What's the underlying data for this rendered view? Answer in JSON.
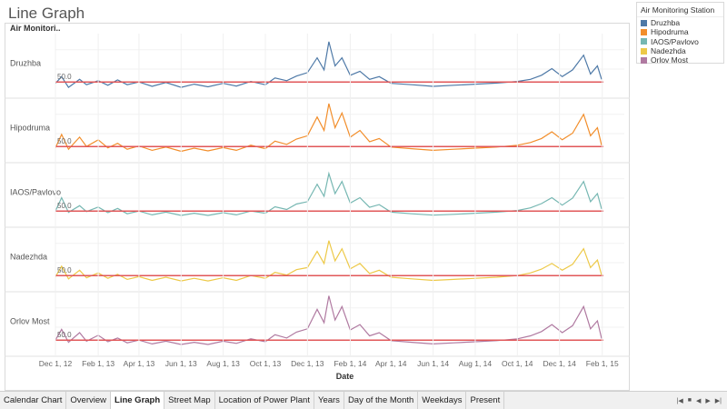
{
  "sheet": {
    "title": "Line Graph"
  },
  "legend": {
    "title": "Air Monitoring Station",
    "items": [
      {
        "label": "Druzhba",
        "color": "#4e79a7"
      },
      {
        "label": "Hipodruma",
        "color": "#f28e2b"
      },
      {
        "label": "IAOS/Pavlovo",
        "color": "#76b7b2"
      },
      {
        "label": "Nadezhda",
        "color": "#edc948"
      },
      {
        "label": "Orlov Most",
        "color": "#b07aa1"
      }
    ]
  },
  "tabs": [
    {
      "label": "Calendar Chart",
      "active": false
    },
    {
      "label": "Overview",
      "active": false
    },
    {
      "label": "Line Graph",
      "active": true
    },
    {
      "label": "Street Map",
      "active": false
    },
    {
      "label": "Location of Power Plant",
      "active": false
    },
    {
      "label": "Years",
      "active": false
    },
    {
      "label": "Day of the Month",
      "active": false
    },
    {
      "label": "Weekdays",
      "active": false
    },
    {
      "label": "Present",
      "active": false
    }
  ],
  "tab_controls": [
    "|◀",
    "■",
    "◀",
    "▶",
    "▶|"
  ],
  "chart_data": {
    "type": "line",
    "row_header": "Air Monitori..",
    "xlabel": "Date",
    "x_ticks": [
      "Dec 1, 12",
      "Feb 1, 13",
      "Apr 1, 13",
      "Jun 1, 13",
      "Aug 1, 13",
      "Oct 1, 13",
      "Dec 1, 13",
      "Feb 1, 14",
      "Apr 1, 14",
      "Jun 1, 14",
      "Aug 1, 14",
      "Oct 1, 14",
      "Dec 1, 14",
      "Feb 1, 15"
    ],
    "x_range": [
      "2012-12-01",
      "2015-01-31"
    ],
    "reference_line": {
      "value": 50,
      "label": "50.0",
      "color": "#e15759"
    },
    "grid": true,
    "series": [
      {
        "name": "Druzhba",
        "color": "#4e79a7",
        "points": [
          [
            "2012-12-01",
            45
          ],
          [
            "2012-12-10",
            70
          ],
          [
            "2012-12-20",
            30
          ],
          [
            "2013-01-05",
            60
          ],
          [
            "2013-01-15",
            40
          ],
          [
            "2013-02-01",
            55
          ],
          [
            "2013-02-15",
            38
          ],
          [
            "2013-03-01",
            58
          ],
          [
            "2013-03-15",
            40
          ],
          [
            "2013-04-01",
            50
          ],
          [
            "2013-04-20",
            34
          ],
          [
            "2013-05-10",
            48
          ],
          [
            "2013-06-01",
            30
          ],
          [
            "2013-06-20",
            42
          ],
          [
            "2013-07-10",
            32
          ],
          [
            "2013-08-01",
            45
          ],
          [
            "2013-08-20",
            35
          ],
          [
            "2013-09-10",
            52
          ],
          [
            "2013-10-01",
            40
          ],
          [
            "2013-10-15",
            65
          ],
          [
            "2013-11-01",
            55
          ],
          [
            "2013-11-15",
            72
          ],
          [
            "2013-12-01",
            85
          ],
          [
            "2013-12-15",
            140
          ],
          [
            "2013-12-25",
            95
          ],
          [
            "2014-01-01",
            200
          ],
          [
            "2014-01-10",
            110
          ],
          [
            "2014-01-20",
            140
          ],
          [
            "2014-02-01",
            75
          ],
          [
            "2014-02-15",
            90
          ],
          [
            "2014-03-01",
            60
          ],
          [
            "2014-03-15",
            70
          ],
          [
            "2014-04-01",
            45
          ],
          [
            "2014-05-01",
            40
          ],
          [
            "2014-06-01",
            34
          ],
          [
            "2014-07-01",
            38
          ],
          [
            "2014-08-01",
            42
          ],
          [
            "2014-09-01",
            46
          ],
          [
            "2014-10-01",
            52
          ],
          [
            "2014-10-20",
            60
          ],
          [
            "2014-11-05",
            75
          ],
          [
            "2014-11-20",
            100
          ],
          [
            "2014-12-05",
            70
          ],
          [
            "2014-12-20",
            95
          ],
          [
            "2015-01-05",
            150
          ],
          [
            "2015-01-15",
            80
          ],
          [
            "2015-01-25",
            110
          ],
          [
            "2015-01-31",
            60
          ]
        ]
      },
      {
        "name": "Hipodruma",
        "color": "#f28e2b",
        "points": [
          [
            "2012-12-01",
            45
          ],
          [
            "2012-12-10",
            95
          ],
          [
            "2012-12-20",
            40
          ],
          [
            "2013-01-05",
            85
          ],
          [
            "2013-01-15",
            50
          ],
          [
            "2013-02-01",
            75
          ],
          [
            "2013-02-15",
            45
          ],
          [
            "2013-03-01",
            62
          ],
          [
            "2013-03-15",
            40
          ],
          [
            "2013-04-01",
            52
          ],
          [
            "2013-04-20",
            36
          ],
          [
            "2013-05-10",
            48
          ],
          [
            "2013-06-01",
            32
          ],
          [
            "2013-06-20",
            44
          ],
          [
            "2013-07-10",
            34
          ],
          [
            "2013-08-01",
            46
          ],
          [
            "2013-08-20",
            36
          ],
          [
            "2013-09-10",
            55
          ],
          [
            "2013-10-01",
            42
          ],
          [
            "2013-10-15",
            70
          ],
          [
            "2013-11-01",
            58
          ],
          [
            "2013-11-15",
            78
          ],
          [
            "2013-12-01",
            90
          ],
          [
            "2013-12-15",
            160
          ],
          [
            "2013-12-25",
            110
          ],
          [
            "2014-01-01",
            210
          ],
          [
            "2014-01-10",
            120
          ],
          [
            "2014-01-20",
            175
          ],
          [
            "2014-02-01",
            85
          ],
          [
            "2014-02-15",
            110
          ],
          [
            "2014-03-01",
            68
          ],
          [
            "2014-03-15",
            80
          ],
          [
            "2014-04-01",
            48
          ],
          [
            "2014-05-01",
            42
          ],
          [
            "2014-06-01",
            36
          ],
          [
            "2014-07-01",
            40
          ],
          [
            "2014-08-01",
            44
          ],
          [
            "2014-09-01",
            48
          ],
          [
            "2014-10-01",
            55
          ],
          [
            "2014-10-20",
            65
          ],
          [
            "2014-11-05",
            80
          ],
          [
            "2014-11-20",
            105
          ],
          [
            "2014-12-05",
            75
          ],
          [
            "2014-12-20",
            100
          ],
          [
            "2015-01-05",
            170
          ],
          [
            "2015-01-15",
            90
          ],
          [
            "2015-01-25",
            120
          ],
          [
            "2015-01-31",
            55
          ]
        ]
      },
      {
        "name": "IAOS/Pavlovo",
        "color": "#76b7b2",
        "points": [
          [
            "2012-12-01",
            50
          ],
          [
            "2012-12-10",
            100
          ],
          [
            "2012-12-20",
            45
          ],
          [
            "2013-01-05",
            70
          ],
          [
            "2013-01-15",
            48
          ],
          [
            "2013-02-01",
            65
          ],
          [
            "2013-02-15",
            44
          ],
          [
            "2013-03-01",
            60
          ],
          [
            "2013-03-15",
            40
          ],
          [
            "2013-04-01",
            50
          ],
          [
            "2013-04-20",
            36
          ],
          [
            "2013-05-10",
            46
          ],
          [
            "2013-06-01",
            34
          ],
          [
            "2013-06-20",
            42
          ],
          [
            "2013-07-10",
            34
          ],
          [
            "2013-08-01",
            44
          ],
          [
            "2013-08-20",
            36
          ],
          [
            "2013-09-10",
            50
          ],
          [
            "2013-10-01",
            42
          ],
          [
            "2013-10-15",
            66
          ],
          [
            "2013-11-01",
            56
          ],
          [
            "2013-11-15",
            76
          ],
          [
            "2013-12-01",
            85
          ],
          [
            "2013-12-15",
            150
          ],
          [
            "2013-12-25",
            105
          ],
          [
            "2014-01-01",
            190
          ],
          [
            "2014-01-10",
            115
          ],
          [
            "2014-01-20",
            160
          ],
          [
            "2014-02-01",
            80
          ],
          [
            "2014-02-15",
            100
          ],
          [
            "2014-03-01",
            64
          ],
          [
            "2014-03-15",
            74
          ],
          [
            "2014-04-01",
            46
          ],
          [
            "2014-05-01",
            40
          ],
          [
            "2014-06-01",
            35
          ],
          [
            "2014-07-01",
            38
          ],
          [
            "2014-08-01",
            42
          ],
          [
            "2014-09-01",
            46
          ],
          [
            "2014-10-01",
            52
          ],
          [
            "2014-10-20",
            62
          ],
          [
            "2014-11-05",
            78
          ],
          [
            "2014-11-20",
            100
          ],
          [
            "2014-12-05",
            72
          ],
          [
            "2014-12-20",
            98
          ],
          [
            "2015-01-05",
            160
          ],
          [
            "2015-01-15",
            85
          ],
          [
            "2015-01-25",
            115
          ],
          [
            "2015-01-31",
            58
          ]
        ]
      },
      {
        "name": "Nadezhda",
        "color": "#edc948",
        "points": [
          [
            "2012-12-01",
            45
          ],
          [
            "2012-12-10",
            85
          ],
          [
            "2012-12-20",
            38
          ],
          [
            "2013-01-05",
            70
          ],
          [
            "2013-01-15",
            42
          ],
          [
            "2013-02-01",
            60
          ],
          [
            "2013-02-15",
            40
          ],
          [
            "2013-03-01",
            55
          ],
          [
            "2013-03-15",
            36
          ],
          [
            "2013-04-01",
            46
          ],
          [
            "2013-04-20",
            32
          ],
          [
            "2013-05-10",
            44
          ],
          [
            "2013-06-01",
            30
          ],
          [
            "2013-06-20",
            40
          ],
          [
            "2013-07-10",
            30
          ],
          [
            "2013-08-01",
            42
          ],
          [
            "2013-08-20",
            32
          ],
          [
            "2013-09-10",
            50
          ],
          [
            "2013-10-01",
            40
          ],
          [
            "2013-10-15",
            62
          ],
          [
            "2013-11-01",
            52
          ],
          [
            "2013-11-15",
            72
          ],
          [
            "2013-12-01",
            80
          ],
          [
            "2013-12-15",
            140
          ],
          [
            "2013-12-25",
            95
          ],
          [
            "2014-01-01",
            180
          ],
          [
            "2014-01-10",
            105
          ],
          [
            "2014-01-20",
            150
          ],
          [
            "2014-02-01",
            75
          ],
          [
            "2014-02-15",
            95
          ],
          [
            "2014-03-01",
            58
          ],
          [
            "2014-03-15",
            70
          ],
          [
            "2014-04-01",
            44
          ],
          [
            "2014-05-01",
            38
          ],
          [
            "2014-06-01",
            32
          ],
          [
            "2014-07-01",
            36
          ],
          [
            "2014-08-01",
            40
          ],
          [
            "2014-09-01",
            44
          ],
          [
            "2014-10-01",
            50
          ],
          [
            "2014-10-20",
            60
          ],
          [
            "2014-11-05",
            74
          ],
          [
            "2014-11-20",
            95
          ],
          [
            "2014-12-05",
            70
          ],
          [
            "2014-12-20",
            92
          ],
          [
            "2015-01-05",
            150
          ],
          [
            "2015-01-15",
            80
          ],
          [
            "2015-01-25",
            108
          ],
          [
            "2015-01-31",
            52
          ]
        ]
      },
      {
        "name": "Orlov Most",
        "color": "#b07aa1",
        "points": [
          [
            "2012-12-01",
            50
          ],
          [
            "2012-12-10",
            90
          ],
          [
            "2012-12-20",
            42
          ],
          [
            "2013-01-05",
            78
          ],
          [
            "2013-01-15",
            46
          ],
          [
            "2013-02-01",
            68
          ],
          [
            "2013-02-15",
            44
          ],
          [
            "2013-03-01",
            58
          ],
          [
            "2013-03-15",
            40
          ],
          [
            "2013-04-01",
            50
          ],
          [
            "2013-04-20",
            36
          ],
          [
            "2013-05-10",
            46
          ],
          [
            "2013-06-01",
            34
          ],
          [
            "2013-06-20",
            42
          ],
          [
            "2013-07-10",
            34
          ],
          [
            "2013-08-01",
            46
          ],
          [
            "2013-08-20",
            38
          ],
          [
            "2013-09-10",
            55
          ],
          [
            "2013-10-01",
            44
          ],
          [
            "2013-10-15",
            70
          ],
          [
            "2013-11-01",
            58
          ],
          [
            "2013-11-15",
            80
          ],
          [
            "2013-12-01",
            92
          ],
          [
            "2013-12-15",
            165
          ],
          [
            "2013-12-25",
            115
          ],
          [
            "2014-01-01",
            215
          ],
          [
            "2014-01-10",
            125
          ],
          [
            "2014-01-20",
            175
          ],
          [
            "2014-02-01",
            88
          ],
          [
            "2014-02-15",
            108
          ],
          [
            "2014-03-01",
            66
          ],
          [
            "2014-03-15",
            78
          ],
          [
            "2014-04-01",
            48
          ],
          [
            "2014-05-01",
            42
          ],
          [
            "2014-06-01",
            36
          ],
          [
            "2014-07-01",
            40
          ],
          [
            "2014-08-01",
            44
          ],
          [
            "2014-09-01",
            48
          ],
          [
            "2014-10-01",
            55
          ],
          [
            "2014-10-20",
            66
          ],
          [
            "2014-11-05",
            82
          ],
          [
            "2014-11-20",
            108
          ],
          [
            "2014-12-05",
            78
          ],
          [
            "2014-12-20",
            104
          ],
          [
            "2015-01-05",
            175
          ],
          [
            "2015-01-15",
            92
          ],
          [
            "2015-01-25",
            122
          ],
          [
            "2015-01-31",
            56
          ]
        ]
      }
    ]
  }
}
